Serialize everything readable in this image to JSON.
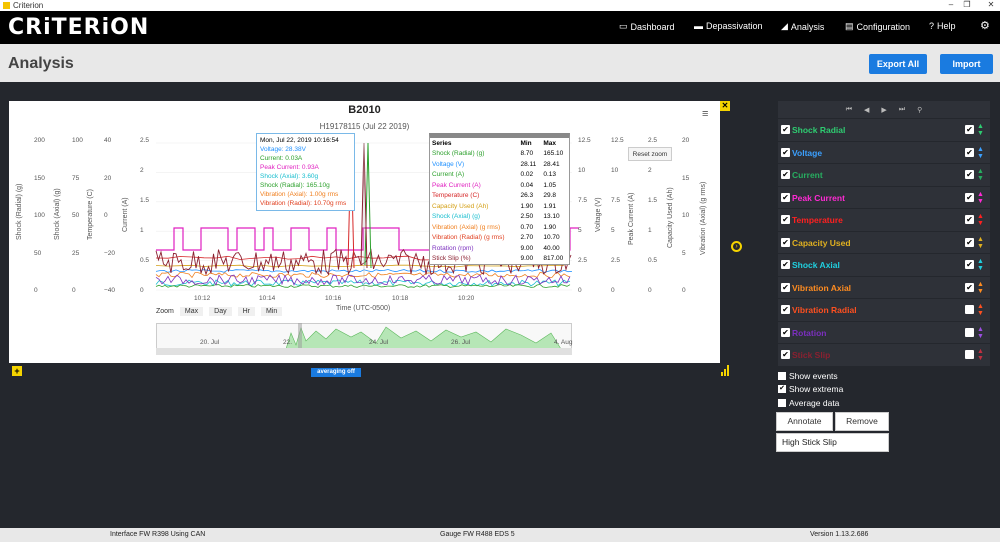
{
  "window": {
    "title": "Criterion",
    "minimize": "–",
    "maximize": "❐",
    "close": "✕"
  },
  "navbar": {
    "logo": "CRiTERiON",
    "items": [
      {
        "icon": "monitor-icon",
        "glyph": "▭",
        "label": "Dashboard"
      },
      {
        "icon": "battery-icon",
        "glyph": "▬",
        "label": "Depassivation"
      },
      {
        "icon": "chart-icon",
        "glyph": "◢",
        "label": "Analysis"
      },
      {
        "icon": "keyboard-icon",
        "glyph": "▤",
        "label": "Configuration"
      },
      {
        "icon": "help-icon",
        "glyph": "?",
        "label": "Help"
      }
    ],
    "settings_glyph": "⚙"
  },
  "header": {
    "title": "Analysis",
    "export_all": "Export All",
    "import": "Import"
  },
  "chart": {
    "title": "B2010",
    "subtitle": "H19178115 (Jul 22 2019)",
    "xlabel": "Time (UTC-0500)",
    "x_ticks": [
      "10:12",
      "10:14",
      "10:16",
      "10:18",
      "10:20"
    ],
    "left_axes": [
      {
        "label": "Shock (Radial) (g)",
        "ticks": [
          "200",
          "150",
          "100",
          "50",
          "0"
        ]
      },
      {
        "label": "Shock (Axial) (g)",
        "ticks": [
          "100",
          "75",
          "50",
          "25",
          "0"
        ]
      },
      {
        "label": "Temperature (C)",
        "ticks": [
          "40",
          "20",
          "0",
          "−20",
          "−40"
        ]
      },
      {
        "label": "Current (A)",
        "ticks": [
          "2.5",
          "2",
          "1.5",
          "1",
          "0.5",
          "0"
        ]
      }
    ],
    "right_axes": [
      {
        "label": "Voltage (V)",
        "ticks": [
          "12.5",
          "10",
          "7.5",
          "5",
          "2.5",
          "0"
        ]
      },
      {
        "label": "Peak Current (A)",
        "ticks": [
          "12.5",
          "10",
          "7.5",
          "5",
          "2.5",
          "0"
        ]
      },
      {
        "label": "Capacity Used (Ah)",
        "ticks": [
          "2.5",
          "2",
          "1.5",
          "1",
          "0.5",
          "0"
        ]
      },
      {
        "label": "Vibration (Axial) (g rms)",
        "ticks": [
          "20",
          "15",
          "10",
          "5",
          "0"
        ]
      }
    ],
    "tooltip": {
      "time": "Mon, Jul 22, 2019 10:16:54",
      "lines": [
        {
          "text": "Voltage: 28.38V",
          "color": "#1e90ff"
        },
        {
          "text": "Current: 0.03A",
          "color": "#2ca02c"
        },
        {
          "text": "Peak Current: 0.93A",
          "color": "#e020c0"
        },
        {
          "text": "Shock (Axial): 3.60g",
          "color": "#17becf"
        },
        {
          "text": "Shock (Radial): 165.10g",
          "color": "#2ca02c"
        },
        {
          "text": "Vibration (Axial): 1.00g rms",
          "color": "#f08020"
        },
        {
          "text": "Vibration (Radial): 10.70g rms",
          "color": "#e04020"
        }
      ]
    },
    "extrema": {
      "headers": [
        "Series",
        "Min",
        "Max"
      ],
      "rows": [
        {
          "name": "Shock (Radial) (g)",
          "min": "8.70",
          "max": "165.10",
          "color": "#2ca02c"
        },
        {
          "name": "Voltage (V)",
          "min": "28.11",
          "max": "28.41",
          "color": "#1e90ff"
        },
        {
          "name": "Current (A)",
          "min": "0.02",
          "max": "0.13",
          "color": "#2ca02c"
        },
        {
          "name": "Peak Current (A)",
          "min": "0.04",
          "max": "1.05",
          "color": "#e020c0"
        },
        {
          "name": "Temperature (C)",
          "min": "26.3",
          "max": "29.8",
          "color": "#d62728"
        },
        {
          "name": "Capacity Used (Ah)",
          "min": "1.90",
          "max": "1.91",
          "color": "#d4a017"
        },
        {
          "name": "Shock (Axial) (g)",
          "min": "2.50",
          "max": "13.10",
          "color": "#17becf"
        },
        {
          "name": "Vibration (Axial) (g rms)",
          "min": "0.70",
          "max": "1.90",
          "color": "#f08020"
        },
        {
          "name": "Vibration (Radial) (g rms)",
          "min": "2.70",
          "max": "10.70",
          "color": "#e04020"
        },
        {
          "name": "Rotation (rpm)",
          "min": "9.00",
          "max": "40.00",
          "color": "#7b2fbe"
        },
        {
          "name": "Stick Slip (%)",
          "min": "9.00",
          "max": "817.00",
          "color": "#8b2030"
        }
      ]
    },
    "reset_zoom": "Reset zoom",
    "zoom": {
      "label": "Zoom",
      "buttons": [
        "Max",
        "Day",
        "Hr",
        "Min"
      ]
    },
    "navigator_labels": [
      "20. Jul",
      "22.",
      "24. Jul",
      "26. Jul",
      "4. Aug"
    ],
    "averaging": "averaging off"
  },
  "series_panel": [
    {
      "label": "Shock Radial",
      "color": "#2ecc71",
      "checked": true,
      "checked2": true,
      "arrow": "#2ecc71"
    },
    {
      "label": "Voltage",
      "color": "#3ba0ff",
      "checked": true,
      "checked2": true,
      "arrow": "#3ba0ff"
    },
    {
      "label": "Current",
      "color": "#27ae60",
      "checked": true,
      "checked2": true,
      "arrow": "#27ae60"
    },
    {
      "label": "Peak Current",
      "color": "#ff2ad4",
      "checked": true,
      "checked2": true,
      "arrow": "#ff2ad4"
    },
    {
      "label": "Temperature",
      "color": "#ff2020",
      "checked": true,
      "checked2": true,
      "arrow": "#ff2020"
    },
    {
      "label": "Capacity Used",
      "color": "#e0b020",
      "checked": true,
      "checked2": true,
      "arrow": "#e0b020"
    },
    {
      "label": "Shock Axial",
      "color": "#20d0e0",
      "checked": true,
      "checked2": true,
      "arrow": "#20d0e0"
    },
    {
      "label": "Vibration Axial",
      "color": "#ff8c20",
      "checked": true,
      "checked2": true,
      "arrow": "#ff8c20"
    },
    {
      "label": "Vibration Radial",
      "color": "#ff5020",
      "checked": true,
      "checked2": false,
      "arrow": "#ff5020"
    },
    {
      "label": "Rotation",
      "color": "#7b2fbe",
      "checked": true,
      "checked2": false,
      "arrow": "#9b4fe0"
    },
    {
      "label": "Stick Slip",
      "color": "#8b2030",
      "checked": true,
      "checked2": false,
      "arrow": "#c03040"
    }
  ],
  "options": {
    "show_events": "Show events",
    "show_extrema": "Show extrema",
    "average_data": "Average data",
    "annotate": "Annotate",
    "remove": "Remove",
    "annotation_value": "High Stick Slip"
  },
  "footer": {
    "interface": "Interface FW R398 Using CAN",
    "gauge": "Gauge FW R488 EDS 5",
    "version": "Version 1.13.2.686"
  }
}
